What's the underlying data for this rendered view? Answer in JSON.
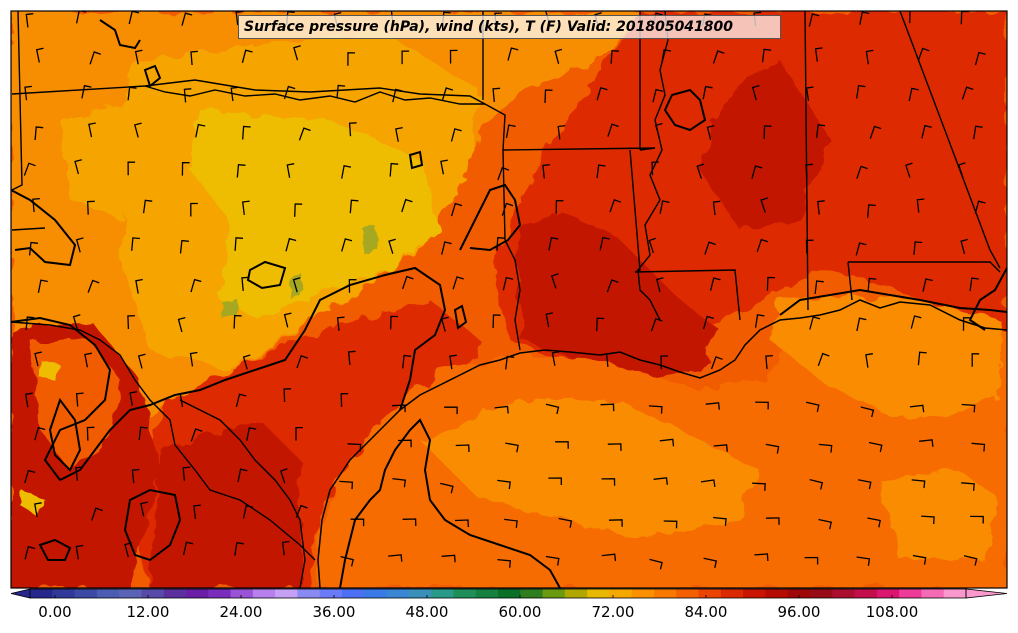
{
  "title": "Surface pressure (hPa), wind (kts), T (F) Valid: 201805041800",
  "colorbar": {
    "tick_labels": [
      "0.00",
      "12.00",
      "24.00",
      "36.00",
      "48.00",
      "60.00",
      "72.00",
      "84.00",
      "96.00",
      "108.00"
    ],
    "range": [
      0,
      120
    ],
    "colors": [
      "#26268c",
      "#303899",
      "#3c4aa6",
      "#4c5cb3",
      "#5a63b6",
      "#584aa8",
      "#5c2e9e",
      "#6a1ea8",
      "#7a2cbc",
      "#9a52d6",
      "#b880ec",
      "#c6a0f4",
      "#8a8af4",
      "#6a7af8",
      "#4c70f4",
      "#3a7ae8",
      "#3a86d4",
      "#3a90b8",
      "#2a9a88",
      "#1f8f5a",
      "#158040",
      "#0a7028",
      "#2e7d1e",
      "#6a9a10",
      "#b0a800",
      "#e8b800",
      "#f4a800",
      "#fb9000",
      "#f87800",
      "#f46000",
      "#ea4400",
      "#dc2a00",
      "#c81400",
      "#b40c00",
      "#a00808",
      "#980c18",
      "#ac0e30",
      "#c40e4c",
      "#dc1670",
      "#ee3a98",
      "#f46ab4",
      "#f898cc"
    ]
  },
  "map": {
    "region": "US Gulf Coast",
    "temperature_colors": {
      "base": "#f25c00",
      "warm": "#de2a00",
      "hot": "#c21200",
      "mild": "#f78d00",
      "cool": "#f5a400",
      "cooler": "#eebc00",
      "coolest": "#a6a820",
      "gulf": "#f76c00",
      "gulf_mild": "#f98c00"
    },
    "boundary_color": "#000000"
  }
}
